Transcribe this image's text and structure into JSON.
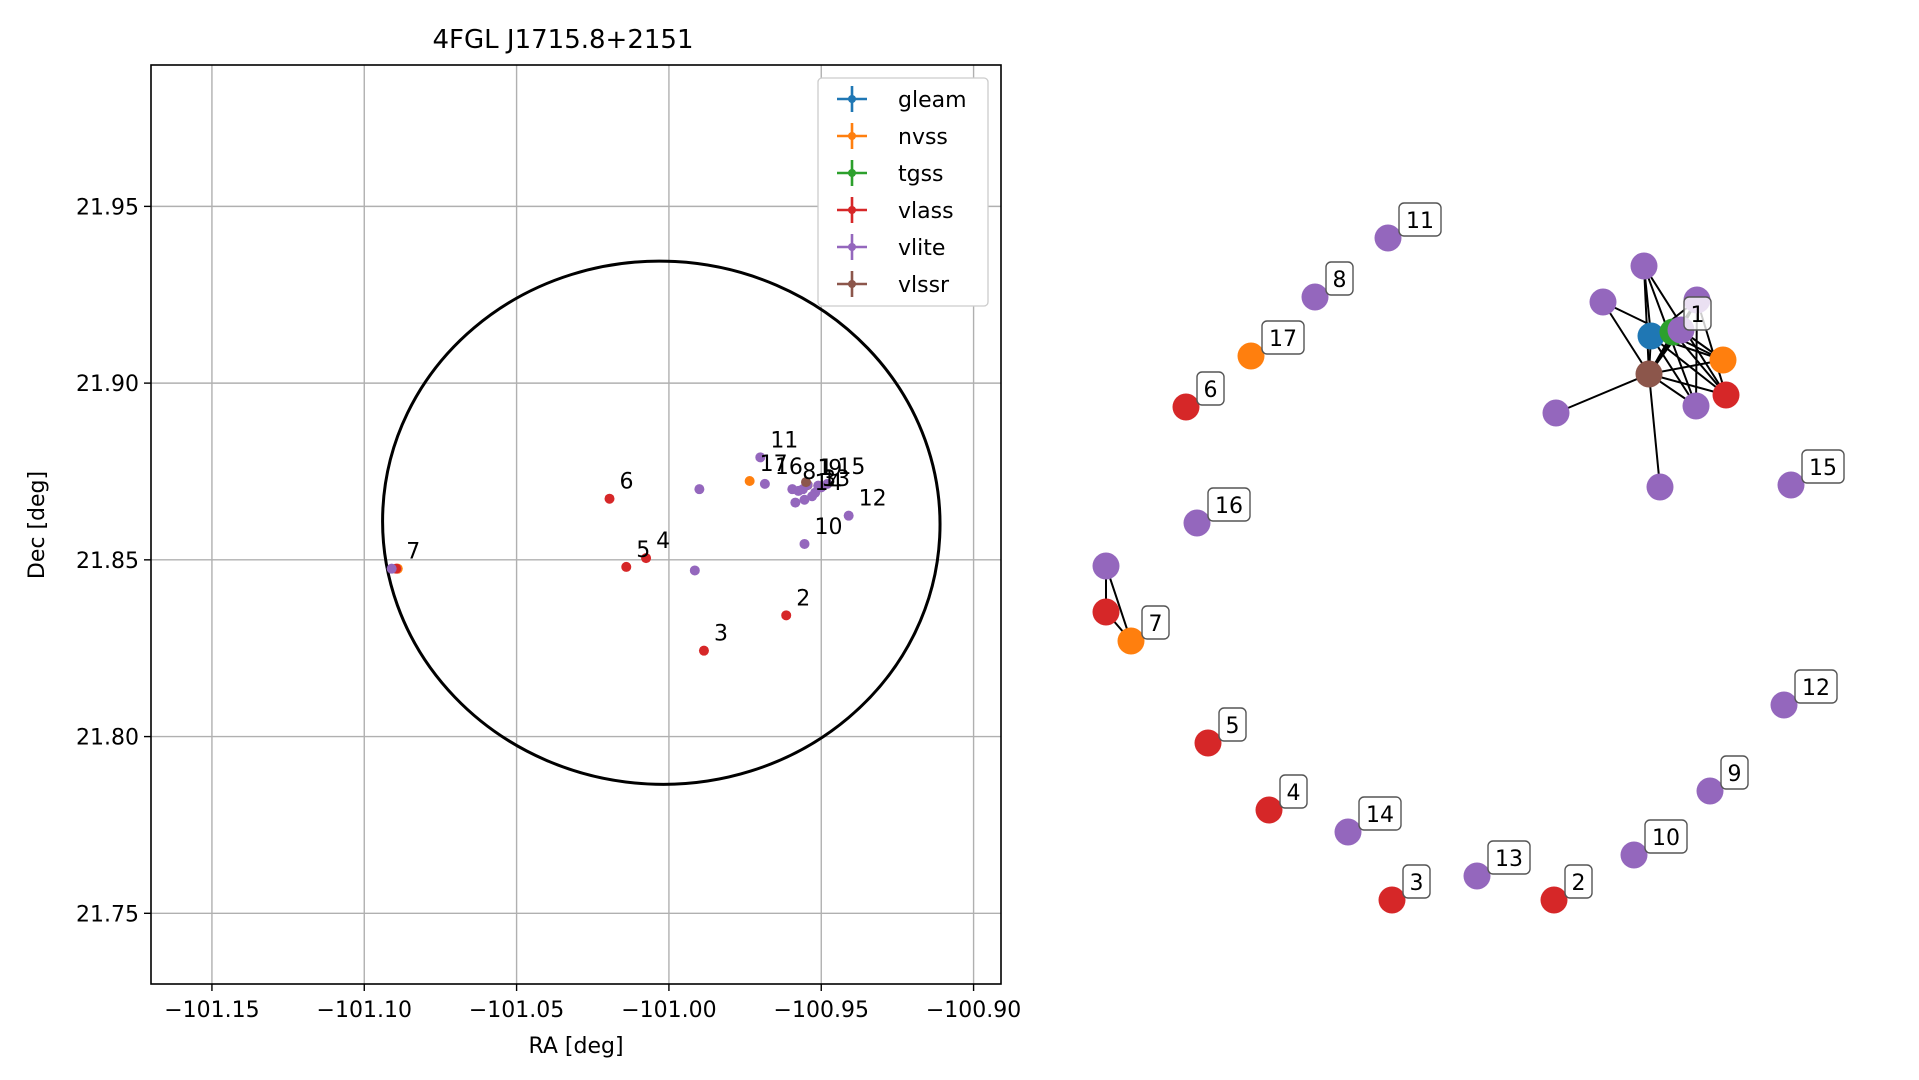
{
  "chart_data": [
    {
      "type": "scatter",
      "title": "4FGL J1715.8+2151",
      "xlabel": "RA [deg]",
      "ylabel": "Dec [deg]",
      "xlim": [
        -101.17,
        -100.891
      ],
      "ylim": [
        21.73,
        21.99
      ],
      "xticks": [
        -101.15,
        -101.1,
        -101.05,
        -101.0,
        -100.95,
        -100.9
      ],
      "xtick_labels": [
        "−101.15",
        "−101.10",
        "−101.05",
        "−101.00",
        "−100.95",
        "−100.90"
      ],
      "yticks": [
        21.75,
        21.8,
        21.85,
        21.9,
        21.95
      ],
      "ytick_labels": [
        "21.75",
        "21.80",
        "21.85",
        "21.90",
        "21.95"
      ],
      "grid": true,
      "legend_position": "top-right",
      "ellipse": {
        "center": [
          -101.0025,
          21.8605
        ],
        "width": 0.183,
        "height": 0.148,
        "angle_deg": 3
      },
      "series": [
        {
          "name": "gleam",
          "color": "#1f77b4",
          "points": [
            {
              "x": -100.9545,
              "y": 21.8712,
              "label": "1"
            }
          ]
        },
        {
          "name": "nvss",
          "color": "#ff7f0e",
          "points": [
            {
              "x": -100.9545,
              "y": 21.8712,
              "label": ""
            },
            {
              "x": -101.089,
              "y": 21.8475,
              "label": ""
            },
            {
              "x": -100.9735,
              "y": 21.8723,
              "label": ""
            }
          ]
        },
        {
          "name": "tgss",
          "color": "#2ca02c",
          "points": [
            {
              "x": -100.9545,
              "y": 21.8712,
              "label": ""
            }
          ]
        },
        {
          "name": "vlass",
          "color": "#d62728",
          "points": [
            {
              "x": -100.9545,
              "y": 21.8712,
              "label": ""
            },
            {
              "x": -100.9615,
              "y": 21.8343,
              "label": "2"
            },
            {
              "x": -100.9885,
              "y": 21.8243,
              "label": "3"
            },
            {
              "x": -101.0075,
              "y": 21.8505,
              "label": "4"
            },
            {
              "x": -101.014,
              "y": 21.848,
              "label": "5"
            },
            {
              "x": -101.0195,
              "y": 21.8673,
              "label": "6"
            },
            {
              "x": -101.0895,
              "y": 21.8475,
              "label": "7"
            }
          ]
        },
        {
          "name": "vlite",
          "color": "#9467bd",
          "points": [
            {
              "x": -100.9575,
              "y": 21.8695,
              "label": ""
            },
            {
              "x": -100.9545,
              "y": 21.8712,
              "label": ""
            },
            {
              "x": -100.956,
              "y": 21.87,
              "label": ""
            },
            {
              "x": -100.952,
              "y": 21.869,
              "label": ""
            },
            {
              "x": -100.95,
              "y": 21.8705,
              "label": ""
            },
            {
              "x": -100.99,
              "y": 21.87,
              "label": ""
            },
            {
              "x": -100.9915,
              "y": 21.847,
              "label": ""
            },
            {
              "x": -100.9585,
              "y": 21.8662,
              "label": ""
            },
            {
              "x": -101.091,
              "y": 21.8475,
              "label": ""
            },
            {
              "x": -100.9595,
              "y": 21.87,
              "label": "8"
            },
            {
              "x": -100.951,
              "y": 21.871,
              "label": "9"
            },
            {
              "x": -100.9555,
              "y": 21.8545,
              "label": "10"
            },
            {
              "x": -100.97,
              "y": 21.879,
              "label": "11"
            },
            {
              "x": -100.941,
              "y": 21.8625,
              "label": "12"
            },
            {
              "x": -100.953,
              "y": 21.868,
              "label": "13"
            },
            {
              "x": -100.9555,
              "y": 21.867,
              "label": "14"
            },
            {
              "x": -100.948,
              "y": 21.8715,
              "label": "15"
            },
            {
              "x": -100.9685,
              "y": 21.8715,
              "label": "16"
            }
          ]
        },
        {
          "name": "vlssr",
          "color": "#8c564b",
          "points": [
            {
              "x": -100.955,
              "y": 21.872,
              "label": ""
            }
          ]
        }
      ],
      "overlap_labels": [
        {
          "text": "17",
          "x": -100.9735,
          "y": 21.8723
        },
        {
          "text": "1",
          "x": -100.954,
          "y": 21.8712
        },
        {
          "text": "3",
          "x": -100.953,
          "y": 21.868
        }
      ]
    },
    {
      "type": "network",
      "nodes": [
        {
          "id": "c-blue",
          "color": "#1f77b4",
          "label": ""
        },
        {
          "id": "c-green",
          "color": "#2ca02c",
          "label": "1"
        },
        {
          "id": "c-brown",
          "color": "#8c564b",
          "label": ""
        },
        {
          "id": "c-orange",
          "color": "#ff7f0e",
          "label": ""
        },
        {
          "id": "c-red",
          "color": "#d62728",
          "label": ""
        },
        {
          "id": "c-v1",
          "color": "#9467bd",
          "label": ""
        },
        {
          "id": "c-v2",
          "color": "#9467bd",
          "label": ""
        },
        {
          "id": "c-v3",
          "color": "#9467bd",
          "label": ""
        },
        {
          "id": "c-v4",
          "color": "#9467bd",
          "label": ""
        },
        {
          "id": "c-v5",
          "color": "#9467bd",
          "label": ""
        },
        {
          "id": "c-v6",
          "color": "#9467bd",
          "label": ""
        },
        {
          "id": "c-v7",
          "color": "#9467bd",
          "label": ""
        },
        {
          "id": "n11",
          "color": "#9467bd",
          "label": "11"
        },
        {
          "id": "n8",
          "color": "#9467bd",
          "label": "8"
        },
        {
          "id": "n17",
          "color": "#ff7f0e",
          "label": "17"
        },
        {
          "id": "n6",
          "color": "#d62728",
          "label": "6"
        },
        {
          "id": "n16",
          "color": "#9467bd",
          "label": "16"
        },
        {
          "id": "n7v",
          "color": "#9467bd",
          "label": ""
        },
        {
          "id": "n7r",
          "color": "#d62728",
          "label": ""
        },
        {
          "id": "n7o",
          "color": "#ff7f0e",
          "label": "7"
        },
        {
          "id": "n5",
          "color": "#d62728",
          "label": "5"
        },
        {
          "id": "n4",
          "color": "#d62728",
          "label": "4"
        },
        {
          "id": "n14",
          "color": "#9467bd",
          "label": "14"
        },
        {
          "id": "n3",
          "color": "#d62728",
          "label": "3"
        },
        {
          "id": "n13",
          "color": "#9467bd",
          "label": "13"
        },
        {
          "id": "n2",
          "color": "#d62728",
          "label": "2"
        },
        {
          "id": "n10",
          "color": "#9467bd",
          "label": "10"
        },
        {
          "id": "n9",
          "color": "#9467bd",
          "label": "9"
        },
        {
          "id": "n12",
          "color": "#9467bd",
          "label": "12"
        },
        {
          "id": "n15",
          "color": "#9467bd",
          "label": "15"
        }
      ],
      "edges": [
        [
          "c-brown",
          "c-blue"
        ],
        [
          "c-brown",
          "c-green"
        ],
        [
          "c-brown",
          "c-orange"
        ],
        [
          "c-brown",
          "c-red"
        ],
        [
          "c-brown",
          "c-v1"
        ],
        [
          "c-brown",
          "c-v2"
        ],
        [
          "c-brown",
          "c-v3"
        ],
        [
          "c-brown",
          "c-v4"
        ],
        [
          "c-brown",
          "c-v5"
        ],
        [
          "c-brown",
          "c-v6"
        ],
        [
          "c-brown",
          "c-v7"
        ],
        [
          "c-blue",
          "c-v1"
        ],
        [
          "c-blue",
          "c-v2"
        ],
        [
          "c-blue",
          "c-red"
        ],
        [
          "c-blue",
          "c-orange"
        ],
        [
          "c-blue",
          "c-v4"
        ],
        [
          "c-v2",
          "c-red"
        ],
        [
          "c-v2",
          "c-v4"
        ],
        [
          "c-v2",
          "c-v6"
        ],
        [
          "c-v1",
          "c-v4"
        ],
        [
          "c-v1",
          "c-red"
        ],
        [
          "c-v3",
          "c-orange"
        ],
        [
          "c-green",
          "c-red"
        ],
        [
          "c-v6",
          "c-orange"
        ],
        [
          "n7v",
          "n7r"
        ],
        [
          "n7v",
          "n7o"
        ],
        [
          "n7r",
          "n7o"
        ]
      ]
    }
  ]
}
